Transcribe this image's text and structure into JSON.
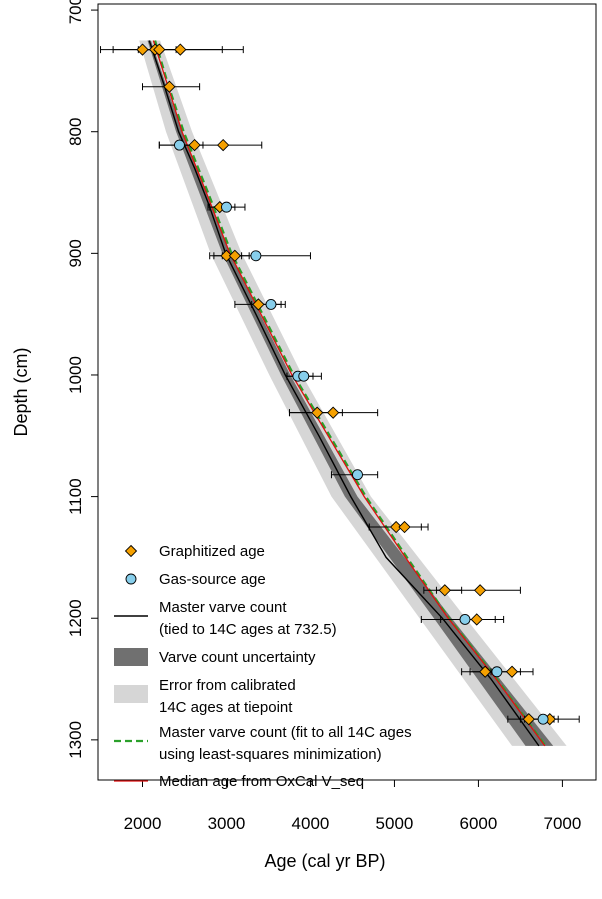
{
  "chart_data": {
    "type": "scatter",
    "xlabel": "Age (cal yr BP)",
    "ylabel": "Depth (cm)",
    "xlim": [
      1470,
      7400
    ],
    "ylim": [
      695,
      1333
    ],
    "y_reversed": true,
    "grid": false,
    "legend_position": "bottom-left",
    "x_ticks": [
      "2000",
      "3000",
      "4000",
      "5000",
      "6000",
      "7000"
    ],
    "y_ticks": [
      "700",
      "800",
      "900",
      "1000",
      "1100",
      "1200",
      "1300"
    ],
    "legend": [
      {
        "label": "Graphitized age",
        "kind": "diamond"
      },
      {
        "label": "Gas-source age",
        "kind": "circle"
      },
      {
        "label": "Master varve count (tied to 14C ages at 732.5)",
        "lines": [
          "Master varve count",
          "(tied to 14C ages at 732.5)"
        ],
        "kind": "line-black"
      },
      {
        "label": "Varve count uncertainty",
        "lines": [
          "Varve count uncertainty"
        ],
        "kind": "band-dark"
      },
      {
        "label": "Error from calibrated 14C ages at tiepoint",
        "lines": [
          "Error from calibrated",
          "14C ages at tiepoint"
        ],
        "kind": "band-light"
      },
      {
        "label": "Master varve count (fit to all 14C ages using least-squares minimization)",
        "lines": [
          "Master varve count (fit to all 14C ages",
          "using least-squares minimization)"
        ],
        "kind": "line-green-dashed"
      },
      {
        "label": "Median age from OxCal V_seq",
        "lines": [
          "Median age from OxCal V_seq"
        ],
        "kind": "line-red"
      }
    ],
    "series": [
      {
        "name": "Graphitized age",
        "marker": "diamond",
        "color": "#f5a000",
        "points": [
          {
            "depth": 732.5,
            "age": 2000,
            "err": [
              1500,
              2200
            ]
          },
          {
            "depth": 732.5,
            "age": 2150,
            "err": [
              1650,
              2950
            ]
          },
          {
            "depth": 732.5,
            "age": 2200,
            "err": [
              2000,
              2400
            ]
          },
          {
            "depth": 732.5,
            "age": 2450,
            "err": [
              1950,
              3200
            ]
          },
          {
            "depth": 763,
            "age": 2320,
            "err": [
              2000,
              2680
            ]
          },
          {
            "depth": 811,
            "age": 2620,
            "err": [
              2200,
              2720
            ]
          },
          {
            "depth": 811,
            "age": 2960,
            "err": [
              2470,
              3420
            ]
          },
          {
            "depth": 862,
            "age": 2920,
            "err": [
              2800,
              3100
            ]
          },
          {
            "depth": 902,
            "age": 3000,
            "err": [
              2800,
              3180
            ]
          },
          {
            "depth": 902,
            "age": 3100,
            "err": [
              2950,
              3270
            ]
          },
          {
            "depth": 942,
            "age": 3380,
            "err": [
              3100,
              3650
            ]
          },
          {
            "depth": 1031,
            "age": 4080,
            "err": [
              3750,
              4380
            ]
          },
          {
            "depth": 1031,
            "age": 4270,
            "err": [
              3750,
              4800
            ]
          },
          {
            "depth": 1125,
            "age": 5020,
            "err": [
              4700,
              5320
            ]
          },
          {
            "depth": 1125,
            "age": 5120,
            "err": [
              4700,
              5400
            ]
          },
          {
            "depth": 1177,
            "age": 5600,
            "err": [
              5350,
              5800
            ]
          },
          {
            "depth": 1177,
            "age": 6020,
            "err": [
              5500,
              6500
            ]
          },
          {
            "depth": 1201,
            "age": 5980,
            "err": [
              5550,
              6300
            ]
          },
          {
            "depth": 1244,
            "age": 6080,
            "err": [
              5800,
              6250
            ]
          },
          {
            "depth": 1244,
            "age": 6400,
            "err": [
              6150,
              6650
            ]
          },
          {
            "depth": 1283,
            "age": 6600,
            "err": [
              6350,
              6900
            ]
          },
          {
            "depth": 1283,
            "age": 6850,
            "err": [
              6550,
              7200
            ]
          }
        ]
      },
      {
        "name": "Gas-source age",
        "marker": "circle",
        "color": "#87ceeb",
        "points": [
          {
            "depth": 811,
            "age": 2440,
            "err": [
              2200,
              2650
            ]
          },
          {
            "depth": 862,
            "age": 3000,
            "err": [
              2780,
              3220
            ]
          },
          {
            "depth": 902,
            "age": 3350,
            "err": [
              2850,
              4000
            ]
          },
          {
            "depth": 942,
            "age": 3530,
            "err": [
              3300,
              3700
            ]
          },
          {
            "depth": 1001,
            "age": 3850,
            "err": [
              3720,
              4030
            ]
          },
          {
            "depth": 1001,
            "age": 3920,
            "err": [
              3720,
              4130
            ]
          },
          {
            "depth": 1082,
            "age": 4560,
            "err": [
              4250,
              4800
            ]
          },
          {
            "depth": 1201,
            "age": 5840,
            "err": [
              5320,
              6200
            ]
          },
          {
            "depth": 1244,
            "age": 6220,
            "err": [
              5900,
              6500
            ]
          },
          {
            "depth": 1283,
            "age": 6770,
            "err": [
              6500,
              6950
            ]
          }
        ]
      }
    ],
    "master_varve_count": [
      {
        "depth": 725,
        "age": 2080
      },
      {
        "depth": 760,
        "age": 2250
      },
      {
        "depth": 800,
        "age": 2430
      },
      {
        "depth": 830,
        "age": 2620
      },
      {
        "depth": 860,
        "age": 2790
      },
      {
        "depth": 900,
        "age": 2990
      },
      {
        "depth": 950,
        "age": 3350
      },
      {
        "depth": 1000,
        "age": 3700
      },
      {
        "depth": 1050,
        "age": 4100
      },
      {
        "depth": 1100,
        "age": 4480
      },
      {
        "depth": 1150,
        "age": 4900
      },
      {
        "depth": 1200,
        "age": 5570
      },
      {
        "depth": 1250,
        "age": 6150
      },
      {
        "depth": 1305,
        "age": 6720
      }
    ],
    "least_squares_fit": [
      {
        "depth": 725,
        "age": 2150
      },
      {
        "depth": 760,
        "age": 2300
      },
      {
        "depth": 800,
        "age": 2490
      },
      {
        "depth": 850,
        "age": 2780
      },
      {
        "depth": 900,
        "age": 3060
      },
      {
        "depth": 950,
        "age": 3430
      },
      {
        "depth": 1000,
        "age": 3800
      },
      {
        "depth": 1050,
        "age": 4230
      },
      {
        "depth": 1100,
        "age": 4660
      },
      {
        "depth": 1150,
        "age": 5150
      },
      {
        "depth": 1200,
        "age": 5650
      },
      {
        "depth": 1250,
        "age": 6220
      },
      {
        "depth": 1305,
        "age": 6800
      }
    ],
    "oxcal_median": [
      {
        "depth": 725,
        "age": 2130
      },
      {
        "depth": 760,
        "age": 2290
      },
      {
        "depth": 800,
        "age": 2470
      },
      {
        "depth": 850,
        "age": 2760
      },
      {
        "depth": 900,
        "age": 3040
      },
      {
        "depth": 950,
        "age": 3410
      },
      {
        "depth": 1000,
        "age": 3780
      },
      {
        "depth": 1050,
        "age": 4210
      },
      {
        "depth": 1100,
        "age": 4640
      },
      {
        "depth": 1150,
        "age": 5130
      },
      {
        "depth": 1200,
        "age": 5640
      },
      {
        "depth": 1250,
        "age": 6210
      },
      {
        "depth": 1305,
        "age": 6790
      }
    ],
    "varve_uncertainty_band": [
      {
        "depth": 725,
        "lo": 2060,
        "hi": 2100
      },
      {
        "depth": 800,
        "lo": 2400,
        "hi": 2470
      },
      {
        "depth": 900,
        "lo": 2950,
        "hi": 3040
      },
      {
        "depth": 1000,
        "lo": 3650,
        "hi": 3760
      },
      {
        "depth": 1100,
        "lo": 4410,
        "hi": 4560
      },
      {
        "depth": 1200,
        "lo": 5470,
        "hi": 5680
      },
      {
        "depth": 1305,
        "lo": 6560,
        "hi": 6890
      }
    ],
    "calibrated_error_band": [
      {
        "depth": 725,
        "lo": 1960,
        "hi": 2210
      },
      {
        "depth": 800,
        "lo": 2280,
        "hi": 2590
      },
      {
        "depth": 900,
        "lo": 2810,
        "hi": 3180
      },
      {
        "depth": 1000,
        "lo": 3510,
        "hi": 3900
      },
      {
        "depth": 1100,
        "lo": 4250,
        "hi": 4720
      },
      {
        "depth": 1200,
        "lo": 5300,
        "hi": 5850
      },
      {
        "depth": 1305,
        "lo": 6400,
        "hi": 7050
      }
    ],
    "colors": {
      "graphitized": "#f5a000",
      "gas_source": "#87ceeb",
      "master_line": "#000000",
      "varve_band": "#707070",
      "calibrated_band": "#d6d6d6",
      "least_squares": "#2aa02a",
      "oxcal": "#e01010"
    }
  }
}
